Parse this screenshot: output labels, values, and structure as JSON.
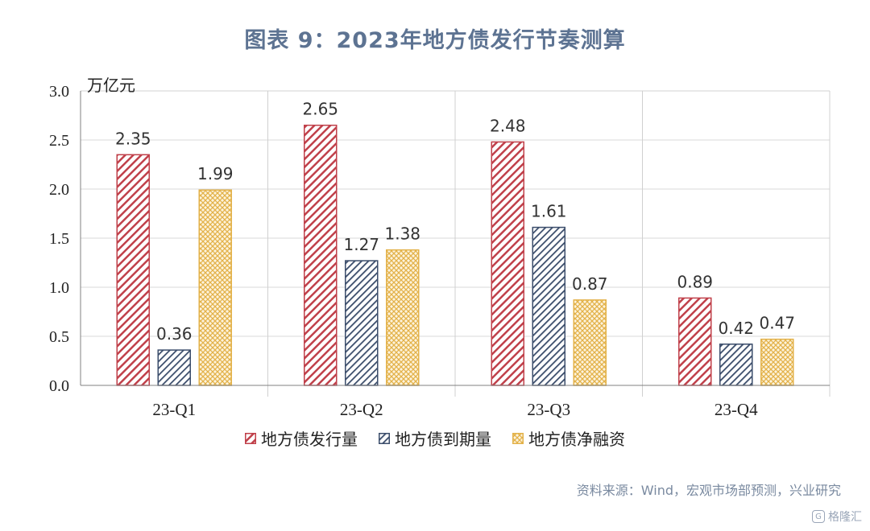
{
  "title": "图表 9：2023年地方债发行节奏测算",
  "chart_data": {
    "type": "bar",
    "unit_label": "万亿元",
    "categories": [
      "23-Q1",
      "23-Q2",
      "23-Q3",
      "23-Q4"
    ],
    "ylim": [
      0,
      3.0
    ],
    "yticks": [
      "0.0",
      "0.5",
      "1.0",
      "1.5",
      "2.0",
      "2.5",
      "3.0"
    ],
    "grid": true,
    "legend_position": "bottom",
    "series": [
      {
        "name": "地方债发行量",
        "values": [
          2.35,
          2.65,
          2.48,
          0.89
        ],
        "labels": [
          "2.35",
          "2.65",
          "2.48",
          "0.89"
        ],
        "color": "#c0404a",
        "pattern": "stripe-red"
      },
      {
        "name": "地方债到期量",
        "values": [
          0.36,
          1.27,
          1.61,
          0.42
        ],
        "labels": [
          "0.36",
          "1.27",
          "1.61",
          "0.42"
        ],
        "color": "#3b4d6b",
        "pattern": "stripe-navy"
      },
      {
        "name": "地方债净融资",
        "values": [
          1.99,
          1.38,
          0.87,
          0.47
        ],
        "labels": [
          "1.99",
          "1.38",
          "0.87",
          "0.47"
        ],
        "color": "#e3b24a",
        "pattern": "cross-gold"
      }
    ]
  },
  "source": "资料来源：Wind，宏观市场部预测，兴业研究",
  "watermark": "格隆汇"
}
